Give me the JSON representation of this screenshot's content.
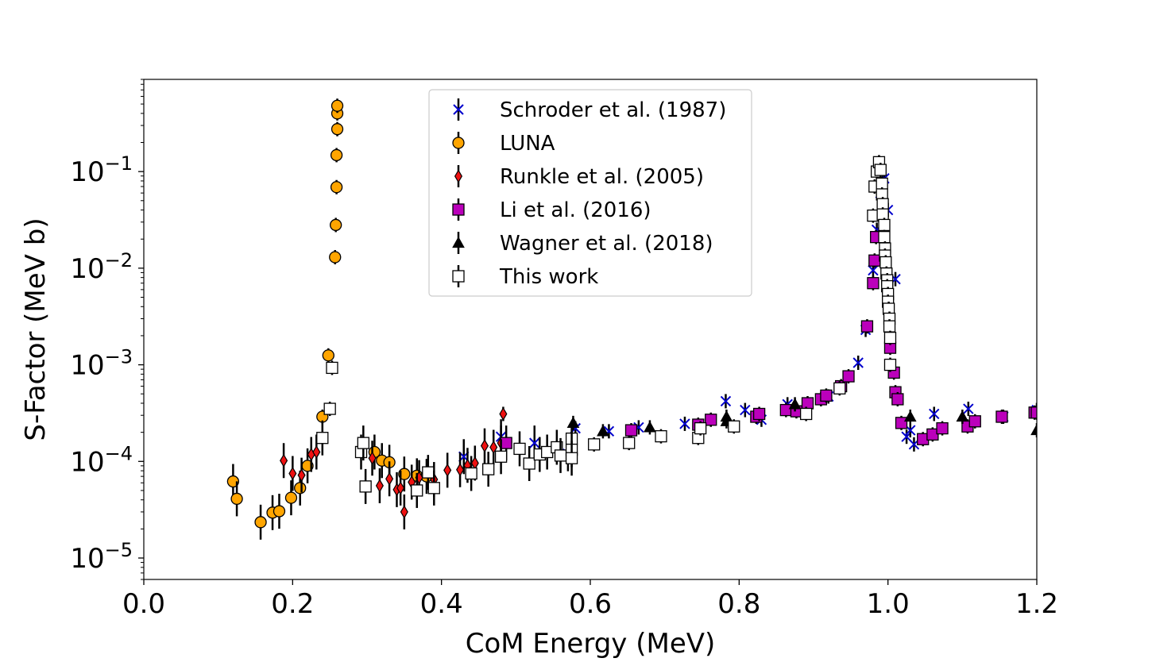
{
  "chart_data": {
    "type": "scatter",
    "title": "",
    "xlabel": "CoM Energy (MeV)",
    "ylabel": "S-Factor (MeV b)",
    "xlim": [
      0.0,
      1.2
    ],
    "ylim": [
      6e-06,
      0.9
    ],
    "yscale": "log",
    "grid": false,
    "legend_position": "upper-center",
    "x_ticks": [
      "0.0",
      "0.2",
      "0.4",
      "0.6",
      "0.8",
      "1.0",
      "1.2"
    ],
    "y_ticks": [
      {
        "value": 1e-05,
        "base": "10",
        "exp": "−5"
      },
      {
        "value": 0.0001,
        "base": "10",
        "exp": "−4"
      },
      {
        "value": 0.001,
        "base": "10",
        "exp": "−3"
      },
      {
        "value": 0.01,
        "base": "10",
        "exp": "−2"
      },
      {
        "value": 0.1,
        "base": "10",
        "exp": "−1"
      }
    ],
    "series": [
      {
        "name": "Schroder et al. (1987)",
        "marker": "x",
        "color": "#0000cc",
        "points": [
          [
            0.43,
            0.000112
          ],
          [
            0.48,
            0.00018
          ],
          [
            0.525,
            0.000155
          ],
          [
            0.57,
            0.00012
          ],
          [
            0.58,
            0.00022
          ],
          [
            0.625,
            0.000205
          ],
          [
            0.665,
            0.000225
          ],
          [
            0.727,
            0.000245
          ],
          [
            0.782,
            0.00042
          ],
          [
            0.808,
            0.00034
          ],
          [
            0.83,
            0.00027
          ],
          [
            0.865,
            0.00039
          ],
          [
            0.92,
            0.00047
          ],
          [
            0.96,
            0.00105
          ],
          [
            0.97,
            0.0023
          ],
          [
            0.98,
            0.0095
          ],
          [
            0.985,
            0.025
          ],
          [
            0.99,
            0.06
          ],
          [
            0.995,
            0.085
          ],
          [
            1.0,
            0.04
          ],
          [
            1.01,
            0.0077
          ],
          [
            1.025,
            0.00018
          ],
          [
            1.03,
            0.00021
          ],
          [
            1.035,
            0.00015
          ],
          [
            1.062,
            0.00031
          ],
          [
            1.108,
            0.00035
          ],
          [
            1.155,
            0.00029
          ],
          [
            1.2,
            0.00034
          ]
        ]
      },
      {
        "name": "LUNA",
        "marker": "circle",
        "color": "#ffa500",
        "points": [
          [
            0.12,
            6.2e-05
          ],
          [
            0.125,
            4.1e-05
          ],
          [
            0.157,
            2.35e-05
          ],
          [
            0.173,
            2.95e-05
          ],
          [
            0.182,
            3.05e-05
          ],
          [
            0.198,
            4.2e-05
          ],
          [
            0.21,
            5.3e-05
          ],
          [
            0.22,
            9e-05
          ],
          [
            0.24,
            0.00029
          ],
          [
            0.248,
            0.00125
          ],
          [
            0.257,
            0.013
          ],
          [
            0.258,
            0.028
          ],
          [
            0.259,
            0.069
          ],
          [
            0.259,
            0.148
          ],
          [
            0.26,
            0.275
          ],
          [
            0.26,
            0.4
          ],
          [
            0.26,
            0.48
          ],
          [
            0.31,
            0.000125
          ],
          [
            0.32,
            0.000102
          ],
          [
            0.33,
            9.8e-05
          ],
          [
            0.35,
            7.4e-05
          ],
          [
            0.367,
            7.1e-05
          ],
          [
            0.38,
            7e-05
          ]
        ]
      },
      {
        "name": "Runkle et al. (2005)",
        "marker": "diamond",
        "color": "#ee1111",
        "points": [
          [
            0.188,
            0.000102
          ],
          [
            0.2,
            7.5e-05
          ],
          [
            0.212,
            7.2e-05
          ],
          [
            0.225,
            0.000118
          ],
          [
            0.232,
            0.000125
          ],
          [
            0.307,
            0.000108
          ],
          [
            0.317,
            5.6e-05
          ],
          [
            0.33,
            6.6e-05
          ],
          [
            0.34,
            5.1e-05
          ],
          [
            0.345,
            5.3e-05
          ],
          [
            0.35,
            3e-05
          ],
          [
            0.36,
            6.1e-05
          ],
          [
            0.37,
            6.8e-05
          ],
          [
            0.39,
            6.5e-05
          ],
          [
            0.408,
            8.1e-05
          ],
          [
            0.425,
            8.2e-05
          ],
          [
            0.435,
            9.1e-05
          ],
          [
            0.445,
            9.6e-05
          ],
          [
            0.458,
            0.000145
          ],
          [
            0.47,
            0.00014
          ],
          [
            0.48,
            0.000155
          ],
          [
            0.483,
            0.00031
          ]
        ]
      },
      {
        "name": "Li et al. (2016)",
        "marker": "square",
        "color": "#bb00bb",
        "points": [
          [
            0.487,
            0.000155
          ],
          [
            0.655,
            0.00021
          ],
          [
            0.745,
            0.00024
          ],
          [
            0.762,
            0.00027
          ],
          [
            0.823,
            0.00029
          ],
          [
            0.827,
            0.00031
          ],
          [
            0.863,
            0.00034
          ],
          [
            0.877,
            0.00033
          ],
          [
            0.892,
            0.0004
          ],
          [
            0.91,
            0.00044
          ],
          [
            0.917,
            0.00048
          ],
          [
            0.937,
            0.0006
          ],
          [
            0.947,
            0.00076
          ],
          [
            0.972,
            0.0025
          ],
          [
            0.98,
            0.007
          ],
          [
            0.982,
            0.012
          ],
          [
            0.984,
            0.021
          ],
          [
            1.003,
            0.0015
          ],
          [
            1.008,
            0.00083
          ],
          [
            1.01,
            0.00052
          ],
          [
            1.013,
            0.00044
          ],
          [
            1.018,
            0.00025
          ],
          [
            1.047,
            0.00017
          ],
          [
            1.06,
            0.00019
          ],
          [
            1.073,
            0.00022
          ],
          [
            1.107,
            0.00023
          ],
          [
            1.117,
            0.00026
          ],
          [
            1.153,
            0.00029
          ],
          [
            1.197,
            0.00032
          ],
          [
            1.2,
            0.00032
          ]
        ]
      },
      {
        "name": "Wagner et al. (2018)",
        "marker": "triangle",
        "color": "#000000",
        "points": [
          [
            0.577,
            0.00025
          ],
          [
            0.617,
            0.000205
          ],
          [
            0.68,
            0.000225
          ],
          [
            0.783,
            0.00029
          ],
          [
            0.783,
            0.00026
          ],
          [
            0.875,
            0.00039
          ],
          [
            1.03,
            0.00029
          ],
          [
            1.1,
            0.00029
          ],
          [
            1.2,
            0.00021
          ]
        ]
      },
      {
        "name": "This work",
        "marker": "open-square",
        "color": "#ffffff",
        "points": [
          [
            0.24,
            0.000175
          ],
          [
            0.25,
            0.00035
          ],
          [
            0.253,
            0.00093
          ],
          [
            0.292,
            0.000125
          ],
          [
            0.295,
            0.000155
          ],
          [
            0.298,
            5.5e-05
          ],
          [
            0.367,
            5e-05
          ],
          [
            0.382,
            7.7e-05
          ],
          [
            0.39,
            5.3e-05
          ],
          [
            0.44,
            7.5e-05
          ],
          [
            0.463,
            8.3e-05
          ],
          [
            0.48,
            0.000112
          ],
          [
            0.505,
            0.000135
          ],
          [
            0.518,
            9.5e-05
          ],
          [
            0.532,
            0.000118
          ],
          [
            0.542,
            0.000125
          ],
          [
            0.555,
            0.00014
          ],
          [
            0.56,
            0.000115
          ],
          [
            0.575,
            0.000172
          ],
          [
            0.575,
            0.000132
          ],
          [
            0.575,
            0.000108
          ],
          [
            0.605,
            0.00015
          ],
          [
            0.652,
            0.000155
          ],
          [
            0.695,
            0.000182
          ],
          [
            0.745,
            0.000175
          ],
          [
            0.748,
            0.00022
          ],
          [
            0.793,
            0.00023
          ],
          [
            0.89,
            0.00031
          ],
          [
            0.935,
            0.00057
          ],
          [
            0.98,
            0.035
          ],
          [
            0.982,
            0.07
          ],
          [
            0.985,
            0.1
          ],
          [
            0.988,
            0.125
          ],
          [
            0.99,
            0.104
          ],
          [
            0.992,
            0.075
          ],
          [
            0.992,
            0.058
          ],
          [
            0.993,
            0.046
          ],
          [
            0.993,
            0.036
          ],
          [
            0.995,
            0.028
          ],
          [
            0.995,
            0.021
          ],
          [
            0.996,
            0.016
          ],
          [
            0.996,
            0.0135
          ],
          [
            0.997,
            0.0115
          ],
          [
            0.998,
            0.0088
          ],
          [
            0.999,
            0.0075
          ],
          [
            0.999,
            0.0065
          ],
          [
            1.0,
            0.0054
          ],
          [
            1.0,
            0.0045
          ],
          [
            1.001,
            0.0038
          ],
          [
            1.002,
            0.003
          ],
          [
            1.002,
            0.0025
          ],
          [
            1.003,
            0.0019
          ],
          [
            1.003,
            0.001
          ]
        ]
      }
    ]
  }
}
